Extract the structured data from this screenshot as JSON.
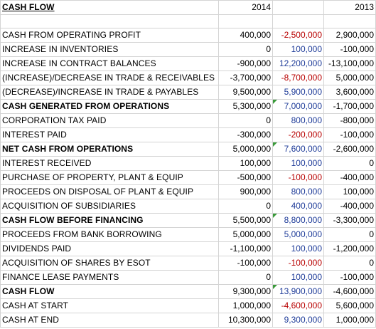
{
  "header": {
    "title": "CASH FLOW",
    "col_2014": "2014",
    "col_2013": "2013"
  },
  "rows": [
    {
      "label": "CASH FROM OPERATING PROFIT",
      "v2014": "400,000",
      "delta": "-2,500,000",
      "v2013": "2,900,000",
      "bold": false
    },
    {
      "label": "INCREASE IN INVENTORIES",
      "v2014": "0",
      "delta": "100,000",
      "v2013": "-100,000",
      "bold": false
    },
    {
      "label": "INCREASE IN CONTRACT BALANCES",
      "v2014": "-900,000",
      "delta": "12,200,000",
      "v2013": "-13,100,000",
      "bold": false
    },
    {
      "label": "(INCREASE)/DECREASE IN TRADE & RECEIVABLES",
      "v2014": "-3,700,000",
      "delta": "-8,700,000",
      "v2013": "5,000,000",
      "bold": false
    },
    {
      "label": "(DECREASE)/INCREASE IN TRADE & PAYABLES",
      "v2014": "9,500,000",
      "delta": "5,900,000",
      "v2013": "3,600,000",
      "bold": false
    },
    {
      "label": "CASH GENERATED FROM OPERATIONS",
      "v2014": "5,300,000",
      "delta": "7,000,000",
      "v2013": "-1,700,000",
      "bold": true
    },
    {
      "label": "CORPORATION TAX PAID",
      "v2014": "0",
      "delta": "800,000",
      "v2013": "-800,000",
      "bold": false
    },
    {
      "label": "INTEREST PAID",
      "v2014": "-300,000",
      "delta": "-200,000",
      "v2013": "-100,000",
      "bold": false
    },
    {
      "label": "NET CASH FROM OPERATIONS",
      "v2014": "5,000,000",
      "delta": "7,600,000",
      "v2013": "-2,600,000",
      "bold": true
    },
    {
      "label": "INTEREST RECEIVED",
      "v2014": "100,000",
      "delta": "100,000",
      "v2013": "0",
      "bold": false
    },
    {
      "label": "PURCHASE OF PROPERTY, PLANT & EQUIP",
      "v2014": "-500,000",
      "delta": "-100,000",
      "v2013": "-400,000",
      "bold": false
    },
    {
      "label": "PROCEEDS ON DISPOSAL OF PLANT & EQUIP",
      "v2014": "900,000",
      "delta": "800,000",
      "v2013": "100,000",
      "bold": false
    },
    {
      "label": "ACQUISITION OF SUBSIDIARIES",
      "v2014": "0",
      "delta": "400,000",
      "v2013": "-400,000",
      "bold": false
    },
    {
      "label": "CASH FLOW BEFORE FINANCING",
      "v2014": "5,500,000",
      "delta": "8,800,000",
      "v2013": "-3,300,000",
      "bold": true
    },
    {
      "label": "PROCEEDS FROM BANK BORROWING",
      "v2014": "5,000,000",
      "delta": "5,000,000",
      "v2013": "0",
      "bold": false
    },
    {
      "label": "DIVIDENDS PAID",
      "v2014": "-1,100,000",
      "delta": "100,000",
      "v2013": "-1,200,000",
      "bold": false
    },
    {
      "label": "ACQUISITION OF SHARES BY ESOT",
      "v2014": "-100,000",
      "delta": "-100,000",
      "v2013": "0",
      "bold": false
    },
    {
      "label": "FINANCE LEASE PAYMENTS",
      "v2014": "0",
      "delta": "100,000",
      "v2013": "-100,000",
      "bold": false
    },
    {
      "label": "CASH FLOW",
      "v2014": "9,300,000",
      "delta": "13,900,000",
      "v2013": "-4,600,000",
      "bold": true
    },
    {
      "label": "CASH AT START",
      "v2014": "1,000,000",
      "delta": "-4,600,000",
      "v2013": "5,600,000",
      "bold": false
    },
    {
      "label": "CASH AT END",
      "v2014": "10,300,000",
      "delta": "9,300,000",
      "v2013": "1,000,000",
      "bold": false
    }
  ],
  "colors": {
    "positive_delta": "#1f3c99",
    "negative_delta": "#b80000",
    "flag": "#3a9a3a"
  }
}
